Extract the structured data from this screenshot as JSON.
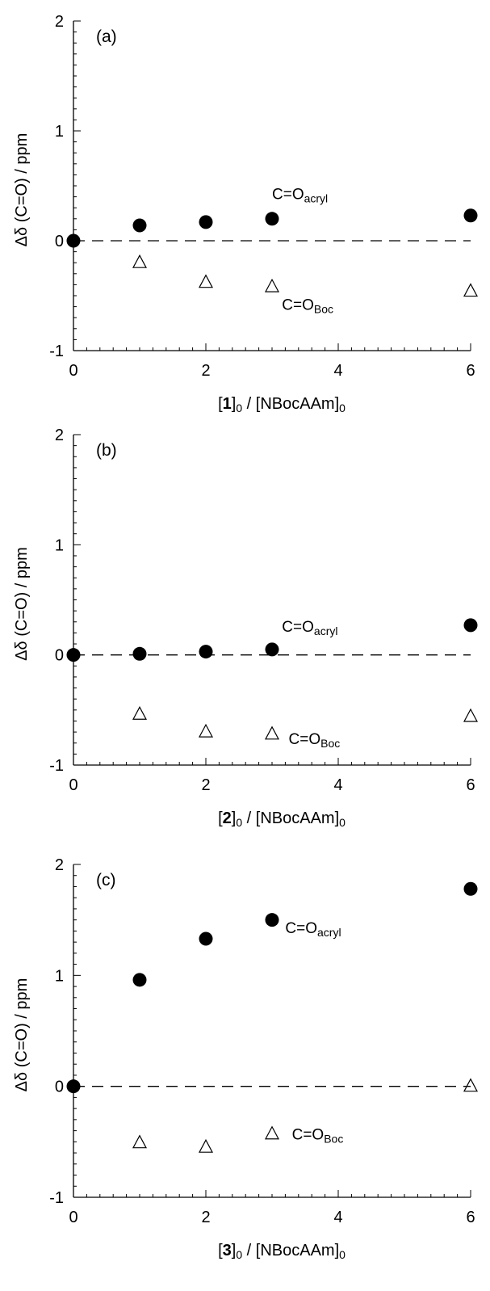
{
  "chart_data": [
    {
      "type": "scatter",
      "panel_label": "(a)",
      "xlabel_prefix": "[",
      "xlabel_bold": "1",
      "xlabel_suffix": "]0 / [NBocAAm]0",
      "ylabel": "Δδ (C=O) / ppm",
      "xlim": [
        0,
        6
      ],
      "ylim": [
        -1,
        2
      ],
      "x_ticks": [
        "0",
        "2",
        "4",
        "6"
      ],
      "y_ticks": [
        "-1",
        "0",
        "1",
        "2"
      ],
      "reference_line": 0,
      "grid": false,
      "series": [
        {
          "name": "C=Oacryl",
          "marker": "filled-circle",
          "x": [
            0,
            1,
            2,
            3,
            6
          ],
          "y": [
            0.0,
            0.14,
            0.17,
            0.2,
            0.23
          ]
        },
        {
          "name": "C=OBoc",
          "marker": "open-triangle",
          "x": [
            1,
            2,
            3,
            6
          ],
          "y": [
            -0.2,
            -0.38,
            -0.42,
            -0.46
          ]
        }
      ],
      "annotations": [
        {
          "main": "C=O",
          "sub": "acryl"
        },
        {
          "main": "C=O",
          "sub": "Boc"
        }
      ]
    },
    {
      "type": "scatter",
      "panel_label": "(b)",
      "xlabel_prefix": "[",
      "xlabel_bold": "2",
      "xlabel_suffix": "]0 / [NBocAAm]0",
      "ylabel": "Δδ (C=O) / ppm",
      "xlim": [
        0,
        6
      ],
      "ylim": [
        -1,
        2
      ],
      "x_ticks": [
        "0",
        "2",
        "4",
        "6"
      ],
      "y_ticks": [
        "-1",
        "0",
        "1",
        "2"
      ],
      "reference_line": 0,
      "grid": false,
      "series": [
        {
          "name": "C=Oacryl",
          "marker": "filled-circle",
          "x": [
            0,
            1,
            2,
            3,
            6
          ],
          "y": [
            0.0,
            0.01,
            0.03,
            0.05,
            0.27
          ]
        },
        {
          "name": "C=OBoc",
          "marker": "open-triangle",
          "x": [
            1,
            2,
            3,
            6
          ],
          "y": [
            -0.54,
            -0.7,
            -0.72,
            -0.56
          ]
        }
      ],
      "annotations": [
        {
          "main": "C=O",
          "sub": "acryl"
        },
        {
          "main": "C=O",
          "sub": "Boc"
        }
      ]
    },
    {
      "type": "scatter",
      "panel_label": "(c)",
      "xlabel_prefix": "[",
      "xlabel_bold": "3",
      "xlabel_suffix": "]0 / [NBocAAm]0",
      "ylabel": "Δδ (C=O) / ppm",
      "xlim": [
        0,
        6
      ],
      "ylim": [
        -1,
        2
      ],
      "x_ticks": [
        "0",
        "2",
        "4",
        "6"
      ],
      "y_ticks": [
        "-1",
        "0",
        "1",
        "2"
      ],
      "reference_line": 0,
      "grid": false,
      "series": [
        {
          "name": "C=Oacryl",
          "marker": "filled-circle",
          "x": [
            0,
            1,
            2,
            3,
            6
          ],
          "y": [
            0.0,
            0.96,
            1.33,
            1.5,
            1.78
          ]
        },
        {
          "name": "C=OBoc",
          "marker": "open-triangle",
          "x": [
            1,
            2,
            3,
            6
          ],
          "y": [
            -0.51,
            -0.55,
            -0.43,
            0.0
          ]
        }
      ],
      "annotations": [
        {
          "main": "C=O",
          "sub": "acryl"
        },
        {
          "main": "C=O",
          "sub": "Boc"
        }
      ]
    }
  ]
}
